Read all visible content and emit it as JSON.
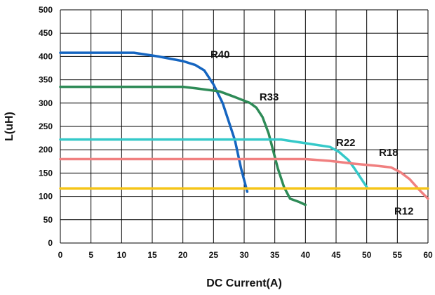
{
  "chart_data": {
    "type": "line",
    "xlabel": "DC Current(A)",
    "ylabel": "L(uH)",
    "xlim": [
      0,
      60
    ],
    "ylim": [
      0,
      500
    ],
    "xticks": [
      0,
      5,
      10,
      15,
      20,
      25,
      30,
      35,
      40,
      45,
      50,
      55,
      60
    ],
    "yticks": [
      0,
      50,
      100,
      150,
      200,
      250,
      300,
      350,
      400,
      450,
      500
    ],
    "grid": true,
    "legend": "none",
    "series": [
      {
        "name": "R40",
        "color": "#1565c0",
        "label_at": [
          24.5,
          397
        ],
        "points": [
          [
            0,
            408
          ],
          [
            12,
            408
          ],
          [
            16,
            400
          ],
          [
            20,
            390
          ],
          [
            22,
            382
          ],
          [
            23.5,
            370
          ],
          [
            25,
            340
          ],
          [
            26.5,
            300
          ],
          [
            27.5,
            260
          ],
          [
            28.5,
            220
          ],
          [
            29.5,
            160
          ],
          [
            30.5,
            110
          ]
        ]
      },
      {
        "name": "R33",
        "color": "#2e8b57",
        "label_at": [
          32.5,
          306
        ],
        "points": [
          [
            0,
            335
          ],
          [
            20,
            335
          ],
          [
            22,
            332
          ],
          [
            26,
            325
          ],
          [
            28.5,
            313
          ],
          [
            31,
            300
          ],
          [
            32,
            290
          ],
          [
            33,
            270
          ],
          [
            34,
            235
          ],
          [
            34.8,
            195
          ],
          [
            35.5,
            160
          ],
          [
            36.5,
            120
          ],
          [
            37.5,
            95
          ],
          [
            39,
            88
          ],
          [
            40,
            82
          ]
        ]
      },
      {
        "name": "R22",
        "color": "#35c9c9",
        "label_at": [
          45,
          208
        ],
        "points": [
          [
            0,
            222
          ],
          [
            36,
            222
          ],
          [
            40,
            214
          ],
          [
            44,
            206
          ],
          [
            45.5,
            195
          ],
          [
            47,
            178
          ],
          [
            48,
            160
          ],
          [
            49,
            140
          ],
          [
            50,
            120
          ]
        ]
      },
      {
        "name": "R18",
        "color": "#f08080",
        "label_at": [
          52,
          187
        ],
        "points": [
          [
            0,
            180
          ],
          [
            40,
            180
          ],
          [
            44,
            176
          ],
          [
            48,
            170
          ],
          [
            52,
            165
          ],
          [
            54,
            162
          ],
          [
            55.5,
            152
          ],
          [
            57,
            137
          ],
          [
            58.5,
            115
          ],
          [
            60,
            95
          ]
        ]
      },
      {
        "name": "R12",
        "color": "#f5c518",
        "label_at": [
          54.5,
          61
        ],
        "points": [
          [
            0,
            117
          ],
          [
            60,
            117
          ]
        ]
      }
    ]
  }
}
